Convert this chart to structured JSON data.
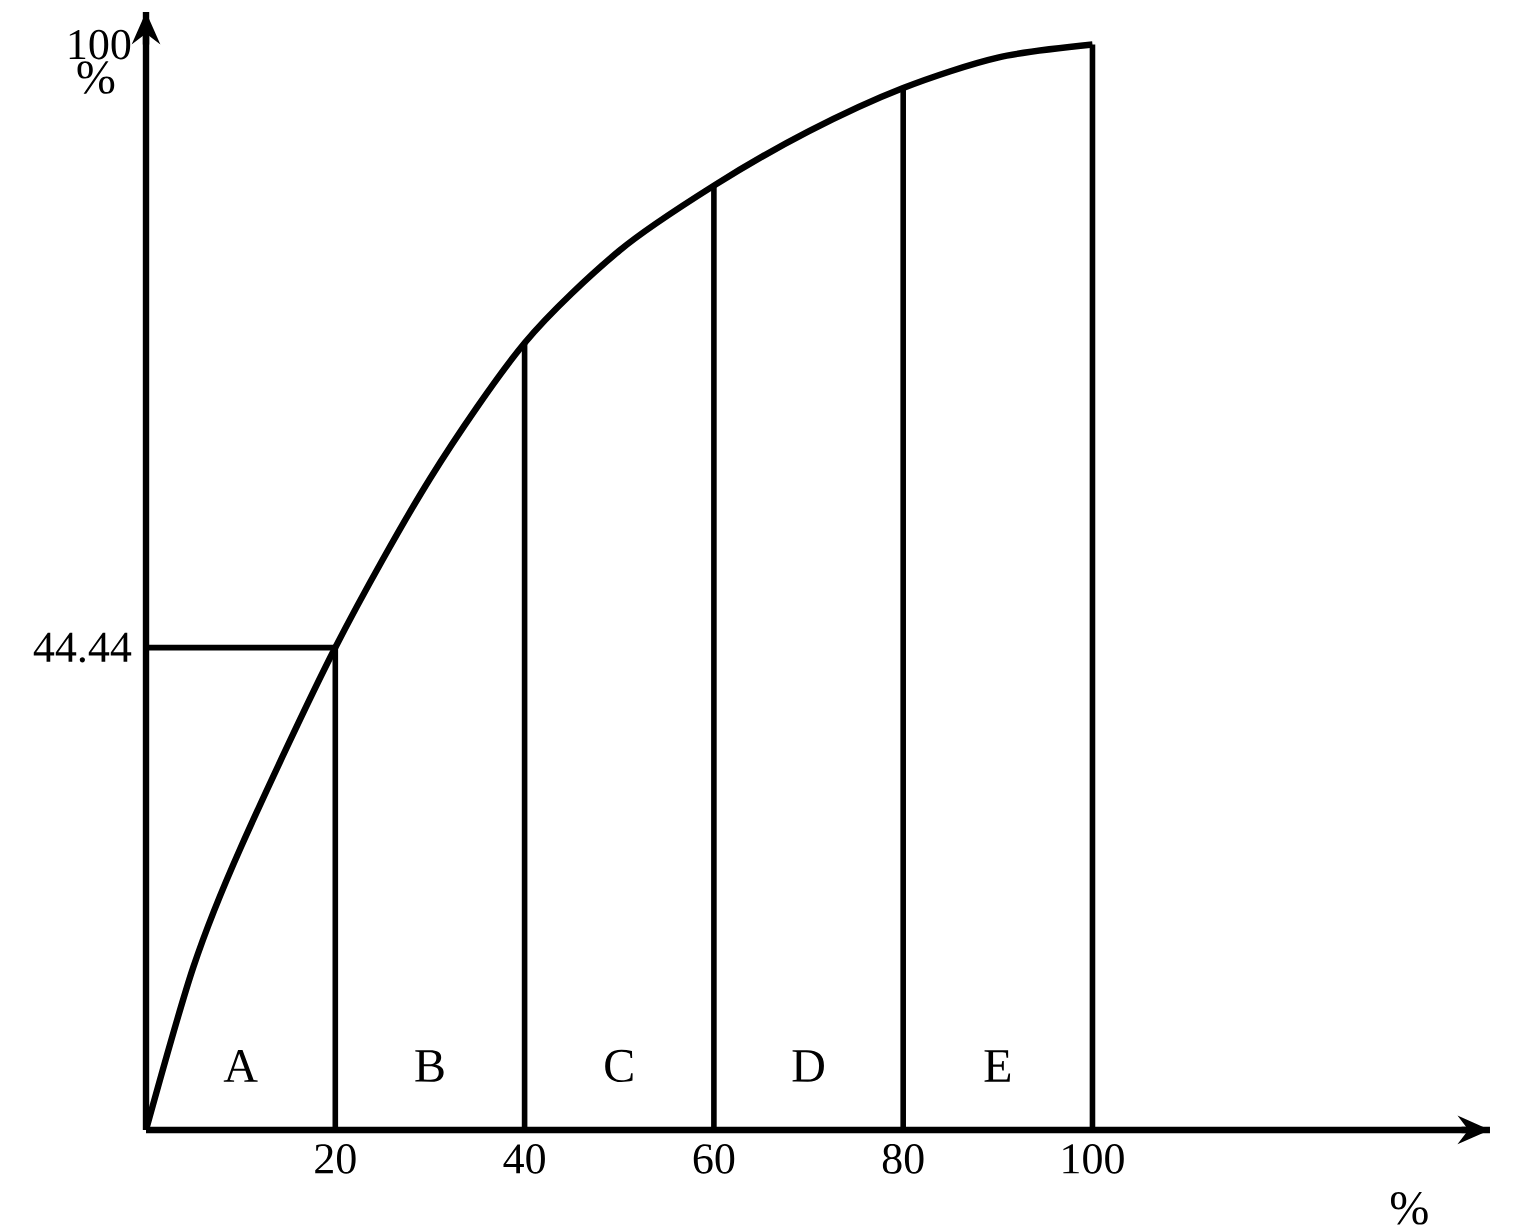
{
  "chart_data": {
    "type": "line",
    "x": [
      0,
      5,
      10,
      20,
      30,
      40,
      50,
      60,
      70,
      80,
      90,
      100
    ],
    "values": [
      0,
      15,
      26,
      44.44,
      60,
      72.5,
      81,
      87,
      92,
      96,
      98.8,
      100
    ],
    "color": "#000000",
    "xlim": [
      0,
      142
    ],
    "ylim": [
      0,
      103
    ],
    "xticks": [
      20,
      40,
      60,
      80,
      100
    ],
    "yticks": [
      44.44,
      100
    ],
    "xlabel": "%",
    "ylabel": "%",
    "ref_lines": [
      {
        "axis": "x",
        "value": 20
      },
      {
        "axis": "x",
        "value": 40
      },
      {
        "axis": "x",
        "value": 60
      },
      {
        "axis": "x",
        "value": 80
      },
      {
        "axis": "x",
        "value": 100
      },
      {
        "axis": "y",
        "value": 44.44
      }
    ],
    "annotations": [
      "A",
      "B",
      "C",
      "D",
      "E"
    ]
  }
}
